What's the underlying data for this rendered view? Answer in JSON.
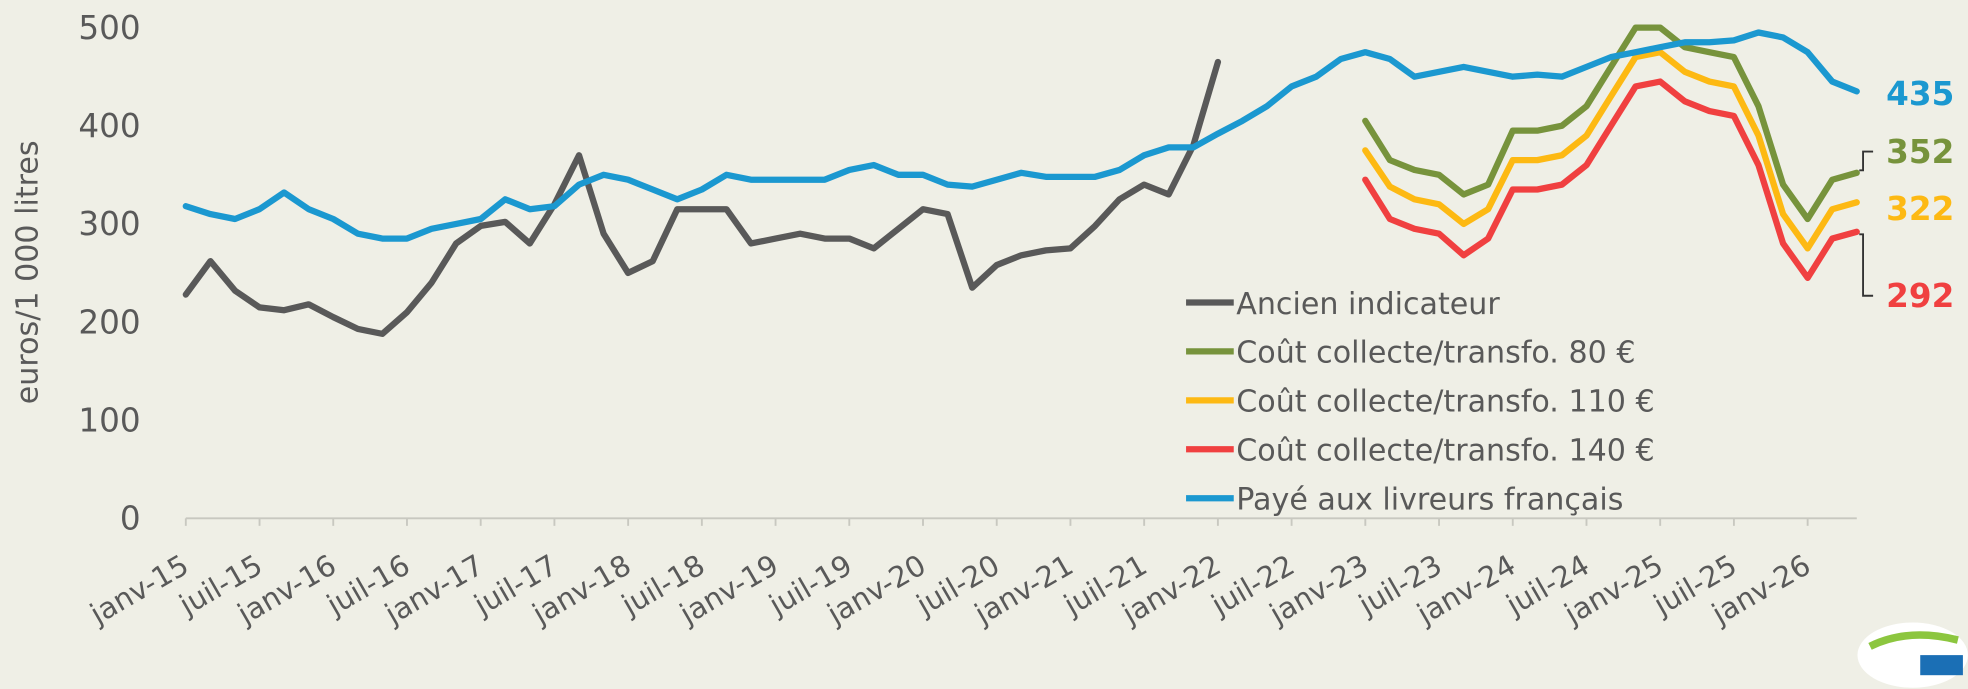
{
  "chart_data": {
    "type": "line",
    "y_label": "euros/1 000 litres",
    "categories": [
      "janv-15",
      null,
      null,
      "juil-15",
      null,
      null,
      "janv-16",
      null,
      null,
      "juil-16",
      null,
      null,
      "janv-17",
      null,
      null,
      "juil-17",
      null,
      null,
      "janv-18",
      null,
      null,
      "juil-18",
      null,
      null,
      "janv-19",
      null,
      null,
      "juil-19",
      null,
      null,
      "janv-20",
      null,
      null,
      "juil-20",
      null,
      null,
      "janv-21",
      null,
      null,
      "juil-21",
      null,
      null,
      "janv-22",
      null,
      null,
      "juil-22",
      null,
      null,
      "janv-23",
      null,
      null,
      "juil-23",
      null,
      null,
      "janv-24",
      null,
      null,
      "juil-24",
      null,
      null,
      "janv-25",
      null,
      null,
      "juil-25",
      null,
      null,
      "janv-26",
      null,
      null
    ],
    "series": [
      {
        "name": "Ancien indicateur",
        "color": "#595959",
        "values": [
          228,
          262,
          232,
          215,
          212,
          218,
          205,
          193,
          188,
          210,
          240,
          280,
          298,
          302,
          280,
          320,
          370,
          290,
          250,
          262,
          315,
          315,
          315,
          280,
          285,
          290,
          285,
          285,
          275,
          295,
          315,
          310,
          235,
          258,
          268,
          273,
          275,
          298,
          325,
          340,
          330,
          380,
          465,
          null,
          null,
          null,
          null,
          null,
          null,
          null,
          null,
          null,
          null,
          null,
          null,
          null,
          null,
          null,
          null,
          null,
          null,
          null,
          null,
          null,
          null,
          null,
          null,
          null,
          null
        ]
      },
      {
        "name": "Coût collecte/transfo. 80 €",
        "color": "#77933c",
        "values": [
          null,
          null,
          null,
          null,
          null,
          null,
          null,
          null,
          null,
          null,
          null,
          null,
          null,
          null,
          null,
          null,
          null,
          null,
          null,
          null,
          null,
          null,
          null,
          null,
          null,
          null,
          null,
          null,
          null,
          null,
          null,
          null,
          null,
          null,
          null,
          null,
          null,
          null,
          null,
          null,
          null,
          null,
          null,
          null,
          null,
          null,
          null,
          null,
          405,
          365,
          355,
          350,
          330,
          340,
          395,
          395,
          400,
          420,
          460,
          500,
          500,
          480,
          475,
          470,
          420,
          340,
          305,
          345,
          352
        ]
      },
      {
        "name": "Coût collecte/transfo. 110 €",
        "color": "#fdb913",
        "values": [
          null,
          null,
          null,
          null,
          null,
          null,
          null,
          null,
          null,
          null,
          null,
          null,
          null,
          null,
          null,
          null,
          null,
          null,
          null,
          null,
          null,
          null,
          null,
          null,
          null,
          null,
          null,
          null,
          null,
          null,
          null,
          null,
          null,
          null,
          null,
          null,
          null,
          null,
          null,
          null,
          null,
          null,
          null,
          null,
          null,
          null,
          null,
          null,
          375,
          338,
          325,
          320,
          300,
          315,
          365,
          365,
          370,
          390,
          430,
          470,
          475,
          455,
          445,
          440,
          390,
          310,
          275,
          315,
          322
        ]
      },
      {
        "name": "Coût collecte/transfo. 140 €",
        "color": "#f04040",
        "values": [
          null,
          null,
          null,
          null,
          null,
          null,
          null,
          null,
          null,
          null,
          null,
          null,
          null,
          null,
          null,
          null,
          null,
          null,
          null,
          null,
          null,
          null,
          null,
          null,
          null,
          null,
          null,
          null,
          null,
          null,
          null,
          null,
          null,
          null,
          null,
          null,
          null,
          null,
          null,
          null,
          null,
          null,
          null,
          null,
          null,
          null,
          null,
          null,
          345,
          305,
          295,
          290,
          268,
          285,
          335,
          335,
          340,
          360,
          400,
          440,
          445,
          425,
          415,
          410,
          360,
          280,
          245,
          285,
          292
        ]
      },
      {
        "name": "Payé aux livreurs français",
        "color": "#1b98d0",
        "values": [
          318,
          310,
          305,
          315,
          332,
          315,
          305,
          290,
          285,
          285,
          295,
          300,
          305,
          325,
          315,
          318,
          340,
          350,
          345,
          335,
          325,
          335,
          350,
          345,
          345,
          345,
          345,
          355,
          360,
          350,
          350,
          340,
          338,
          345,
          352,
          348,
          348,
          348,
          355,
          370,
          378,
          378,
          392,
          405,
          420,
          440,
          450,
          468,
          475,
          468,
          450,
          455,
          460,
          455,
          450,
          452,
          450,
          460,
          470,
          475,
          480,
          485,
          485,
          487,
          495,
          490,
          475,
          445,
          435
        ]
      }
    ],
    "ylim": [
      0,
      500
    ],
    "yticks": [
      0,
      100,
      200,
      300,
      400,
      500
    ],
    "grid": false
  }
}
